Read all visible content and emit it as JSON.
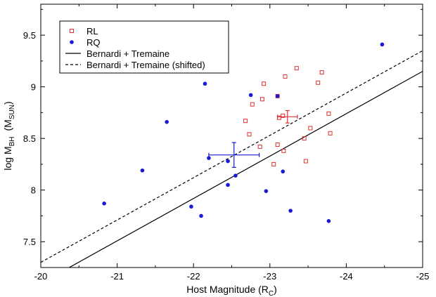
{
  "chart_data": {
    "type": "scatter",
    "title": "",
    "xlabel_main": "Host Magnitude (R",
    "xlabel_sub": "C",
    "xlabel_end": ")",
    "ylabel_main": "log M",
    "ylabel_sub": "BH",
    "ylabel_unit_main": "(M",
    "ylabel_unit_sub": "SUN",
    "ylabel_unit_end": ")",
    "xlim": [
      -20,
      -25
    ],
    "ylim": [
      7.25,
      9.8
    ],
    "x_ticks": [
      -20,
      -21,
      -22,
      -23,
      -24,
      -25
    ],
    "x_tick_labels": [
      "-20",
      "-21",
      "-22",
      "-23",
      "-24",
      "-25"
    ],
    "y_ticks": [
      7.5,
      8,
      8.5,
      9,
      9.5
    ],
    "y_tick_labels": [
      "7.5",
      "8",
      "8.5",
      "9",
      "9.5"
    ],
    "grid": false,
    "legend_position": "top-left",
    "legend": [
      {
        "label": "RL",
        "kind": "open-square",
        "color": "#e03030"
      },
      {
        "label": "RQ",
        "kind": "filled-circle",
        "color": "#1a1ad6"
      },
      {
        "label": "Bernardi + Tremaine",
        "kind": "solid-line",
        "color": "#000000"
      },
      {
        "label": "Bernardi + Tremaine (shifted)",
        "kind": "dashed-line",
        "color": "#000000"
      }
    ],
    "series": [
      {
        "name": "RL",
        "marker": "open-square",
        "color": "#e03030",
        "points": [
          [
            -23.35,
            9.18
          ],
          [
            -23.68,
            9.14
          ],
          [
            -23.2,
            9.1
          ],
          [
            -23.63,
            9.04
          ],
          [
            -22.92,
            9.03
          ],
          [
            -22.9,
            8.88
          ],
          [
            -22.77,
            8.83
          ],
          [
            -23.1,
            8.91
          ],
          [
            -22.68,
            8.67
          ],
          [
            -23.12,
            8.7
          ],
          [
            -23.17,
            8.72
          ],
          [
            -23.77,
            8.74
          ],
          [
            -22.73,
            8.54
          ],
          [
            -23.53,
            8.6
          ],
          [
            -23.79,
            8.55
          ],
          [
            -23.45,
            8.5
          ],
          [
            -22.87,
            8.42
          ],
          [
            -23.1,
            8.44
          ],
          [
            -23.18,
            8.38
          ],
          [
            -23.47,
            8.28
          ],
          [
            -23.05,
            8.25
          ]
        ],
        "mean": {
          "x": -23.23,
          "y": 8.71,
          "xerr": 0.13,
          "yerr": 0.06
        }
      },
      {
        "name": "RQ",
        "marker": "filled-circle",
        "color": "#1a1ad6",
        "points": [
          [
            -24.47,
            9.41
          ],
          [
            -22.15,
            9.03
          ],
          [
            -22.75,
            8.92
          ],
          [
            -23.1,
            8.91
          ],
          [
            -21.65,
            8.66
          ],
          [
            -22.2,
            8.31
          ],
          [
            -21.33,
            8.19
          ],
          [
            -22.45,
            8.28
          ],
          [
            -22.55,
            8.14
          ],
          [
            -23.17,
            8.18
          ],
          [
            -22.45,
            8.05
          ],
          [
            -22.95,
            7.99
          ],
          [
            -20.83,
            7.87
          ],
          [
            -21.97,
            7.84
          ],
          [
            -22.1,
            7.75
          ],
          [
            -23.27,
            7.8
          ],
          [
            -23.77,
            7.7
          ]
        ],
        "mean": {
          "x": -22.53,
          "y": 8.34,
          "xerr": 0.33,
          "yerr": 0.12
        }
      }
    ],
    "lines": [
      {
        "name": "Bernardi + Tremaine",
        "style": "solid",
        "x": [
          -20.25,
          -25.0
        ],
        "y": [
          7.2,
          9.15
        ]
      },
      {
        "name": "Bernardi + Tremaine (shifted)",
        "style": "dashed",
        "x": [
          -20.0,
          -25.0
        ],
        "y": [
          7.3,
          9.35
        ]
      }
    ]
  }
}
